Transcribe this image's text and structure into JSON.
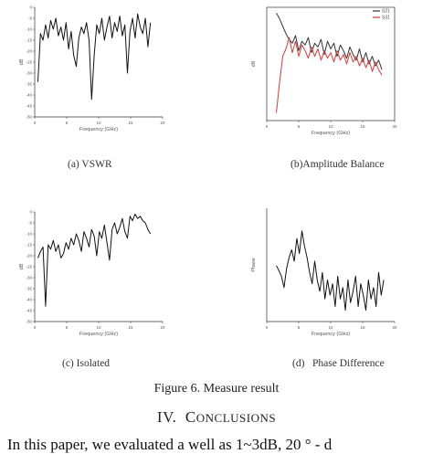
{
  "chart_data": [
    {
      "type": "line",
      "panel": "a",
      "xlabel": "Frequency (GHz)",
      "ylabel": "dB",
      "xlim": [
        0,
        20
      ],
      "ylim": [
        -50,
        0
      ],
      "x_ticks": [
        "0",
        "5",
        "10",
        "15",
        "20"
      ],
      "y_ticks": [
        "0",
        "-5",
        "-10",
        "-15",
        "-20",
        "-25",
        "-30",
        "-35",
        "-40",
        "-45",
        "-50"
      ],
      "series": [
        {
          "color": "#111111",
          "x": [
            0.5,
            0.9,
            1.3,
            1.7,
            2.1,
            2.5,
            2.9,
            3.3,
            3.7,
            4.1,
            4.5,
            4.9,
            5.3,
            5.7,
            6.1,
            6.5,
            6.9,
            7.3,
            7.7,
            8.1,
            8.5,
            8.9,
            9.3,
            9.7,
            10.1,
            10.5,
            10.9,
            11.3,
            11.7,
            12.1,
            12.5,
            12.9,
            13.3,
            13.7,
            14.1,
            14.5,
            14.9,
            15.3,
            15.7,
            16.1,
            16.5,
            16.9,
            17.3,
            17.7,
            18.1
          ],
          "y": [
            -34,
            -12,
            -15,
            -8,
            -14,
            -6,
            -10,
            -5,
            -13,
            -9,
            -15,
            -7,
            -19,
            -11,
            -22,
            -27,
            -14,
            -9,
            -12,
            -7,
            -15,
            -42,
            -22,
            -8,
            -12,
            -5,
            -15,
            -9,
            -4,
            -14,
            -7,
            -11,
            -4,
            -13,
            -8,
            -30,
            -11,
            -5,
            -14,
            -3,
            -9,
            -12,
            -5,
            -18,
            -7
          ]
        }
      ]
    },
    {
      "type": "line",
      "panel": "b",
      "xlabel": "Frequency (GHz)",
      "ylabel": "dB",
      "xlim": [
        0,
        20
      ],
      "ylim": [
        -8,
        -2
      ],
      "x_ticks": [
        "0",
        "5",
        "10",
        "15",
        "20"
      ],
      "series": [
        {
          "name": "S21",
          "color": "#333333",
          "x": [
            1.5,
            2.0,
            2.5,
            3.0,
            3.5,
            4.0,
            4.5,
            5.0,
            5.5,
            6.0,
            6.5,
            7.0,
            7.5,
            8.0,
            8.5,
            9.0,
            9.5,
            10.0,
            10.5,
            11.0,
            11.5,
            12.0,
            12.5,
            13.0,
            13.5,
            14.0,
            14.5,
            15.0,
            15.5,
            16.0,
            16.5,
            17.0,
            17.5,
            18.0
          ],
          "y": [
            -2.3,
            -2.6,
            -3.0,
            -3.4,
            -3.7,
            -3.9,
            -3.5,
            -4.3,
            -3.8,
            -4.0,
            -3.6,
            -4.4,
            -3.9,
            -4.1,
            -3.7,
            -4.5,
            -3.8,
            -4.2,
            -3.9,
            -4.6,
            -4.0,
            -4.3,
            -4.7,
            -4.1,
            -4.5,
            -4.8,
            -4.2,
            -4.9,
            -4.4,
            -5.0,
            -4.6,
            -5.1,
            -4.8,
            -5.3
          ]
        },
        {
          "name": "S31",
          "color": "#d93a3a",
          "x": [
            1.5,
            2.0,
            2.5,
            3.0,
            3.5,
            4.0,
            4.5,
            5.0,
            5.5,
            6.0,
            6.5,
            7.0,
            7.5,
            8.0,
            8.5,
            9.0,
            9.5,
            10.0,
            10.5,
            11.0,
            11.5,
            12.0,
            12.5,
            13.0,
            13.5,
            14.0,
            14.5,
            15.0,
            15.5,
            16.0,
            16.5,
            17.0,
            17.5,
            18.0
          ],
          "y": [
            -7.6,
            -6.0,
            -4.6,
            -4.2,
            -3.6,
            -4.4,
            -3.8,
            -4.6,
            -4.0,
            -4.3,
            -4.7,
            -4.1,
            -4.6,
            -4.2,
            -4.8,
            -4.3,
            -4.7,
            -4.4,
            -4.9,
            -4.3,
            -4.8,
            -4.5,
            -5.0,
            -4.4,
            -4.9,
            -4.6,
            -5.1,
            -4.7,
            -5.2,
            -4.8,
            -5.4,
            -4.9,
            -5.3,
            -5.6
          ]
        }
      ]
    },
    {
      "type": "line",
      "panel": "c",
      "xlabel": "Frequency (GHz)",
      "ylabel": "dB",
      "xlim": [
        0,
        20
      ],
      "ylim": [
        -50,
        0
      ],
      "x_ticks": [
        "0",
        "5",
        "10",
        "15",
        "20"
      ],
      "y_ticks": [
        "0",
        "-5",
        "-10",
        "-15",
        "-20",
        "-25",
        "-30",
        "-35",
        "-40",
        "-45",
        "-50"
      ],
      "series": [
        {
          "color": "#111111",
          "x": [
            0.5,
            0.9,
            1.3,
            1.7,
            2.1,
            2.5,
            2.9,
            3.3,
            3.7,
            4.1,
            4.5,
            4.9,
            5.3,
            5.7,
            6.1,
            6.5,
            6.9,
            7.3,
            7.7,
            8.1,
            8.5,
            8.9,
            9.3,
            9.7,
            10.1,
            10.5,
            10.9,
            11.3,
            11.7,
            12.1,
            12.5,
            12.9,
            13.3,
            13.7,
            14.1,
            14.5,
            14.9,
            15.3,
            15.7,
            16.1,
            16.5,
            16.9,
            17.3,
            17.7,
            18.1
          ],
          "y": [
            -21,
            -18,
            -16,
            -43,
            -15,
            -17,
            -13,
            -18,
            -15,
            -21,
            -19,
            -14,
            -17,
            -12,
            -15,
            -10,
            -13,
            -18,
            -9,
            -12,
            -16,
            -8,
            -11,
            -20,
            -9,
            -12,
            -6,
            -14,
            -22,
            -8,
            -5,
            -10,
            -7,
            -3,
            -9,
            -12,
            -2,
            -4,
            -1,
            -3,
            -2,
            -4,
            -5,
            -8,
            -10
          ]
        }
      ]
    },
    {
      "type": "line",
      "panel": "d",
      "xlabel": "Frequency (GHz)",
      "ylabel": "Phase",
      "xlim": [
        0,
        20
      ],
      "ylim": [
        -15,
        15
      ],
      "x_ticks": [
        "0",
        "5",
        "10",
        "15",
        "20"
      ],
      "series": [
        {
          "color": "#111111",
          "x": [
            1.5,
            1.9,
            2.3,
            2.7,
            3.1,
            3.5,
            3.9,
            4.3,
            4.7,
            5.1,
            5.5,
            5.9,
            6.3,
            6.7,
            7.1,
            7.5,
            7.9,
            8.3,
            8.7,
            9.1,
            9.5,
            9.9,
            10.3,
            10.7,
            11.1,
            11.5,
            11.9,
            12.3,
            12.7,
            13.1,
            13.5,
            13.9,
            14.3,
            14.7,
            15.1,
            15.5,
            15.9,
            16.3,
            16.7,
            17.1,
            17.5,
            17.9,
            18.3
          ],
          "y": [
            -0.2,
            -1.5,
            -3,
            -6,
            -1,
            2,
            4,
            1,
            7,
            3,
            9,
            5,
            2,
            -2,
            -5,
            1,
            -4,
            -7,
            -2,
            -9,
            -4,
            -8,
            -5,
            -11,
            -3,
            -9,
            -6,
            -12,
            -4,
            -10,
            -7,
            -3,
            -11,
            -5,
            -8,
            -12,
            -4,
            -9,
            -6,
            -11,
            -2,
            -8,
            -4
          ]
        }
      ]
    }
  ],
  "captions": {
    "a": "(a) VSWR",
    "b": "(b)Amplitude Balance",
    "c": "(c) Isolated",
    "d": "(d)   Phase Difference"
  },
  "figure_caption": "Figure 6. Measure result",
  "section": {
    "number": "IV.",
    "first_letter": "C",
    "rest": "ONCLUSIONS"
  },
  "body_text": "In this paper, we evaluated a well as 1~3dB, 20 ° - d"
}
